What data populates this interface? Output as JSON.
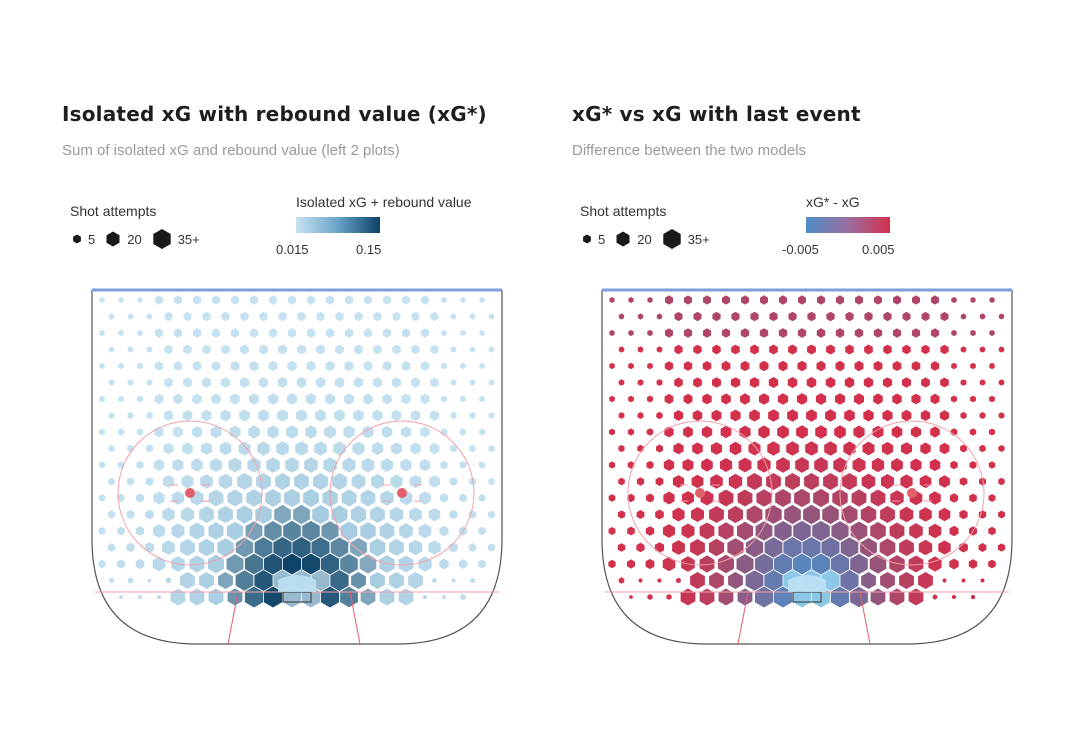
{
  "chart_data": [
    {
      "type": "hexbin-map",
      "title": "Isolated xG with rebound value (xG*)",
      "subtitle": "Sum of isolated xG and rebound value (left 2 plots)",
      "size_legend": {
        "title": "Shot attempts",
        "labels": [
          "5",
          "20",
          "35+"
        ]
      },
      "color_legend": {
        "title": "Isolated xG + rebound value",
        "range": [
          0.015,
          0.15
        ],
        "tick_labels": [
          "0.015",
          "0.15"
        ],
        "colors": [
          "#c9e2f0",
          "#0c4266"
        ]
      }
    },
    {
      "type": "hexbin-map",
      "title": "xG* vs xG with last event",
      "subtitle": "Difference between the two models",
      "size_legend": {
        "title": "Shot attempts",
        "labels": [
          "5",
          "20",
          "35+"
        ]
      },
      "color_legend": {
        "title": "xG* - xG",
        "range": [
          -0.005,
          0.005
        ],
        "tick_labels": [
          "-0.005",
          "0.005"
        ],
        "colors": [
          "#4f8dc8",
          "#d3304c"
        ]
      }
    }
  ]
}
